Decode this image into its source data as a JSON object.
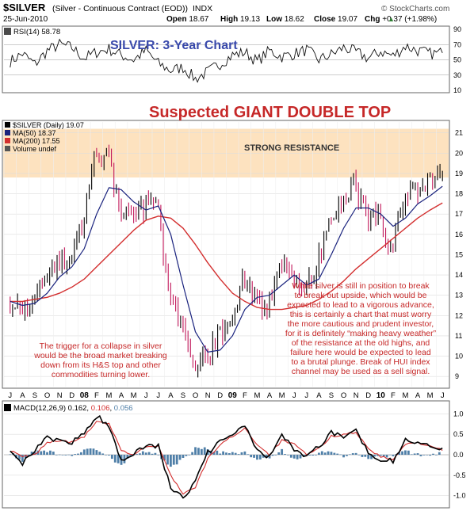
{
  "header": {
    "symbol": "$SILVER",
    "description": "(Silver - Continuous Contract (EOD))",
    "exchange": "INDX",
    "date": "25-Jun-2010",
    "watermark": "© StockCharts.com",
    "stats": [
      {
        "label": "Open",
        "value": "18.67"
      },
      {
        "label": "High",
        "value": "19.13"
      },
      {
        "label": "Low",
        "value": "18.62"
      },
      {
        "label": "Close",
        "value": "19.07"
      },
      {
        "label": "Chg",
        "value": "+0.37 (+1.98%)"
      }
    ],
    "chg_arrow": "▲"
  },
  "rsi_panel": {
    "label": "RSI(14) 58.78",
    "title": "SILVER: 3-Year Chart",
    "ticks": [
      "90",
      "70",
      "50",
      "30",
      "10"
    ]
  },
  "price_panel": {
    "headline": "Suspected GIANT DOUBLE TOP",
    "resistance_label": "STRONG RESISTANCE",
    "legend": [
      {
        "text": "$SILVER (Daily) 19.07",
        "color": "#000000"
      },
      {
        "text": "MA(50) 18.37",
        "color": "#1a237e"
      },
      {
        "text": "MA(200) 17.55",
        "color": "#d32f2f"
      },
      {
        "text": "Volume undef",
        "color": "#555555"
      }
    ],
    "ticks": [
      "21",
      "20",
      "19",
      "18",
      "17",
      "16",
      "15",
      "14",
      "13",
      "12",
      "11",
      "10",
      "9"
    ],
    "note_left": [
      "The trigger for a collapse in silver",
      "would be the broad market breaking",
      "down from its H&S top and other",
      "commodities turning lower."
    ],
    "note_right": [
      "While silver is still in position to break",
      "to break out upside, which would be",
      "expected to lead to a vigorous advance,",
      "this is certainly a chart that must worry",
      "the more cautious and prudent investor,",
      "for it is definitely “making heavy weather”",
      "of the resistance at the old highs, and",
      "failure here would be expected to lead",
      "to a brutal plunge. Break of HUI index",
      "channel may be used as a sell signal."
    ]
  },
  "months_axis": [
    "J",
    "A",
    "S",
    "O",
    "N",
    "D",
    "08",
    "F",
    "M",
    "A",
    "M",
    "J",
    "J",
    "A",
    "S",
    "O",
    "N",
    "D",
    "09",
    "F",
    "M",
    "A",
    "M",
    "J",
    "J",
    "A",
    "S",
    "O",
    "N",
    "D",
    "10",
    "F",
    "M",
    "A",
    "M",
    "J"
  ],
  "macd_panel": {
    "label_prefix": "MACD(12,26,9)",
    "macd_value": "0.162",
    "signal_value": "0.106",
    "hist_value": "0.056",
    "ticks": [
      "1.0",
      "0.5",
      "0.0",
      "-0.5",
      "-1.0"
    ]
  },
  "colors": {
    "price": "#000000",
    "down_bar": "#c2185b",
    "ma50": "#1a237e",
    "ma200": "#d32f2f",
    "resistance_band": "#fde2bf",
    "headline": "#c62828",
    "note": "#c62828",
    "rsi_title": "#3949ab",
    "histogram": "#4f7fa8"
  },
  "chart_data": [
    {
      "type": "line",
      "title": "SILVER: 3-Year Chart",
      "series": [
        {
          "name": "RSI(14)",
          "values": [
            48,
            58,
            44,
            62,
            70,
            66,
            52,
            60,
            64,
            56,
            50,
            62,
            45,
            36,
            40,
            25,
            34,
            45,
            56,
            60,
            48,
            62,
            54,
            58,
            63,
            50,
            57,
            66,
            60,
            52,
            61,
            55,
            68,
            62,
            58,
            59
          ]
        }
      ],
      "categories": [
        "Jul07",
        "Aug07",
        "Sep07",
        "Oct07",
        "Nov07",
        "Dec07",
        "Jan08",
        "Feb08",
        "Mar08",
        "Apr08",
        "May08",
        "Jun08",
        "Jul08",
        "Aug08",
        "Sep08",
        "Oct08",
        "Nov08",
        "Dec08",
        "Jan09",
        "Feb09",
        "Mar09",
        "Apr09",
        "May09",
        "Jun09",
        "Jul09",
        "Aug09",
        "Sep09",
        "Oct09",
        "Nov09",
        "Dec09",
        "Jan10",
        "Feb10",
        "Mar10",
        "Apr10",
        "May10",
        "Jun10"
      ],
      "ylim": [
        10,
        90
      ],
      "ticks": [
        90,
        70,
        50,
        30,
        10
      ]
    },
    {
      "type": "line",
      "title": "Suspected GIANT DOUBLE TOP",
      "categories": [
        "Jul07",
        "Aug07",
        "Sep07",
        "Oct07",
        "Nov07",
        "Dec07",
        "Jan08",
        "Feb08",
        "Mar08",
        "Apr08",
        "May08",
        "Jun08",
        "Jul08",
        "Aug08",
        "Sep08",
        "Oct08",
        "Nov08",
        "Dec08",
        "Jan09",
        "Feb09",
        "Mar09",
        "Apr09",
        "May09",
        "Jun09",
        "Jul09",
        "Aug09",
        "Sep09",
        "Oct09",
        "Nov09",
        "Dec09",
        "Jan10",
        "Feb10",
        "Mar10",
        "Apr10",
        "May10",
        "Jun10"
      ],
      "series": [
        {
          "name": "$SILVER (Daily)",
          "values": [
            12.9,
            12.1,
            12.8,
            13.9,
            14.6,
            14.7,
            16.2,
            19.5,
            20.1,
            17.4,
            17.0,
            17.3,
            18.0,
            13.3,
            11.5,
            9.6,
            9.8,
            10.9,
            11.4,
            13.7,
            13.0,
            12.2,
            14.8,
            13.7,
            13.1,
            14.3,
            16.8,
            17.4,
            18.4,
            17.0,
            16.8,
            15.4,
            17.5,
            18.2,
            18.4,
            19.07
          ]
        },
        {
          "name": "MA(50)",
          "values": [
            12.7,
            12.5,
            12.6,
            13.1,
            13.9,
            14.4,
            15.3,
            17.0,
            18.3,
            18.2,
            17.6,
            17.2,
            17.4,
            16.0,
            13.5,
            11.2,
            10.2,
            10.3,
            11.0,
            12.3,
            12.9,
            13.0,
            13.5,
            14.0,
            13.5,
            13.8,
            15.0,
            16.3,
            17.3,
            17.3,
            17.0,
            16.4,
            16.8,
            17.5,
            17.9,
            18.37
          ]
        },
        {
          "name": "MA(200)",
          "values": [
            12.7,
            12.7,
            12.8,
            12.9,
            13.1,
            13.4,
            13.8,
            14.4,
            15.0,
            15.6,
            16.2,
            16.7,
            16.9,
            16.8,
            16.3,
            15.5,
            14.6,
            13.8,
            13.1,
            12.7,
            12.4,
            12.3,
            12.3,
            12.4,
            12.5,
            12.8,
            13.2,
            13.7,
            14.3,
            14.8,
            15.3,
            15.8,
            16.3,
            16.8,
            17.2,
            17.55
          ]
        }
      ],
      "resistance_band": [
        18.8,
        21.2
      ],
      "ylim": [
        8.5,
        21.3
      ],
      "ticks": [
        21,
        20,
        19,
        18,
        17,
        16,
        15,
        14,
        13,
        12,
        11,
        10,
        9
      ]
    },
    {
      "type": "line",
      "title": "MACD(12,26,9)",
      "categories": [
        "Jul07",
        "Aug07",
        "Sep07",
        "Oct07",
        "Nov07",
        "Dec07",
        "Jan08",
        "Feb08",
        "Mar08",
        "Apr08",
        "May08",
        "Jun08",
        "Jul08",
        "Aug08",
        "Sep08",
        "Oct08",
        "Nov08",
        "Dec08",
        "Jan09",
        "Feb09",
        "Mar09",
        "Apr09",
        "May09",
        "Jun09",
        "Jul09",
        "Aug09",
        "Sep09",
        "Oct09",
        "Nov09",
        "Dec09",
        "Jan10",
        "Feb10",
        "Mar10",
        "Apr10",
        "May10",
        "Jun10"
      ],
      "series": [
        {
          "name": "MACD",
          "values": [
            0.15,
            -0.2,
            0.1,
            0.4,
            0.35,
            0.3,
            0.55,
            0.95,
            0.7,
            -0.15,
            0.05,
            0.25,
            0.2,
            -0.8,
            -1.05,
            -0.65,
            0.05,
            0.3,
            0.5,
            0.7,
            0.1,
            -0.05,
            0.45,
            0.15,
            -0.05,
            0.2,
            0.55,
            0.45,
            0.6,
            0.05,
            -0.1,
            -0.15,
            0.35,
            0.3,
            0.2,
            0.162
          ]
        },
        {
          "name": "Signal",
          "values": [
            0.1,
            -0.05,
            0.0,
            0.3,
            0.35,
            0.3,
            0.45,
            0.8,
            0.75,
            0.1,
            0.0,
            0.2,
            0.2,
            -0.5,
            -0.95,
            -0.8,
            -0.1,
            0.25,
            0.45,
            0.65,
            0.25,
            0.0,
            0.35,
            0.25,
            0.0,
            0.15,
            0.45,
            0.5,
            0.55,
            0.15,
            -0.05,
            -0.12,
            0.25,
            0.3,
            0.22,
            0.106
          ]
        }
      ],
      "ylim": [
        -1.2,
        1.2
      ],
      "ticks": [
        1.0,
        0.5,
        0.0,
        -0.5,
        -1.0
      ]
    }
  ]
}
